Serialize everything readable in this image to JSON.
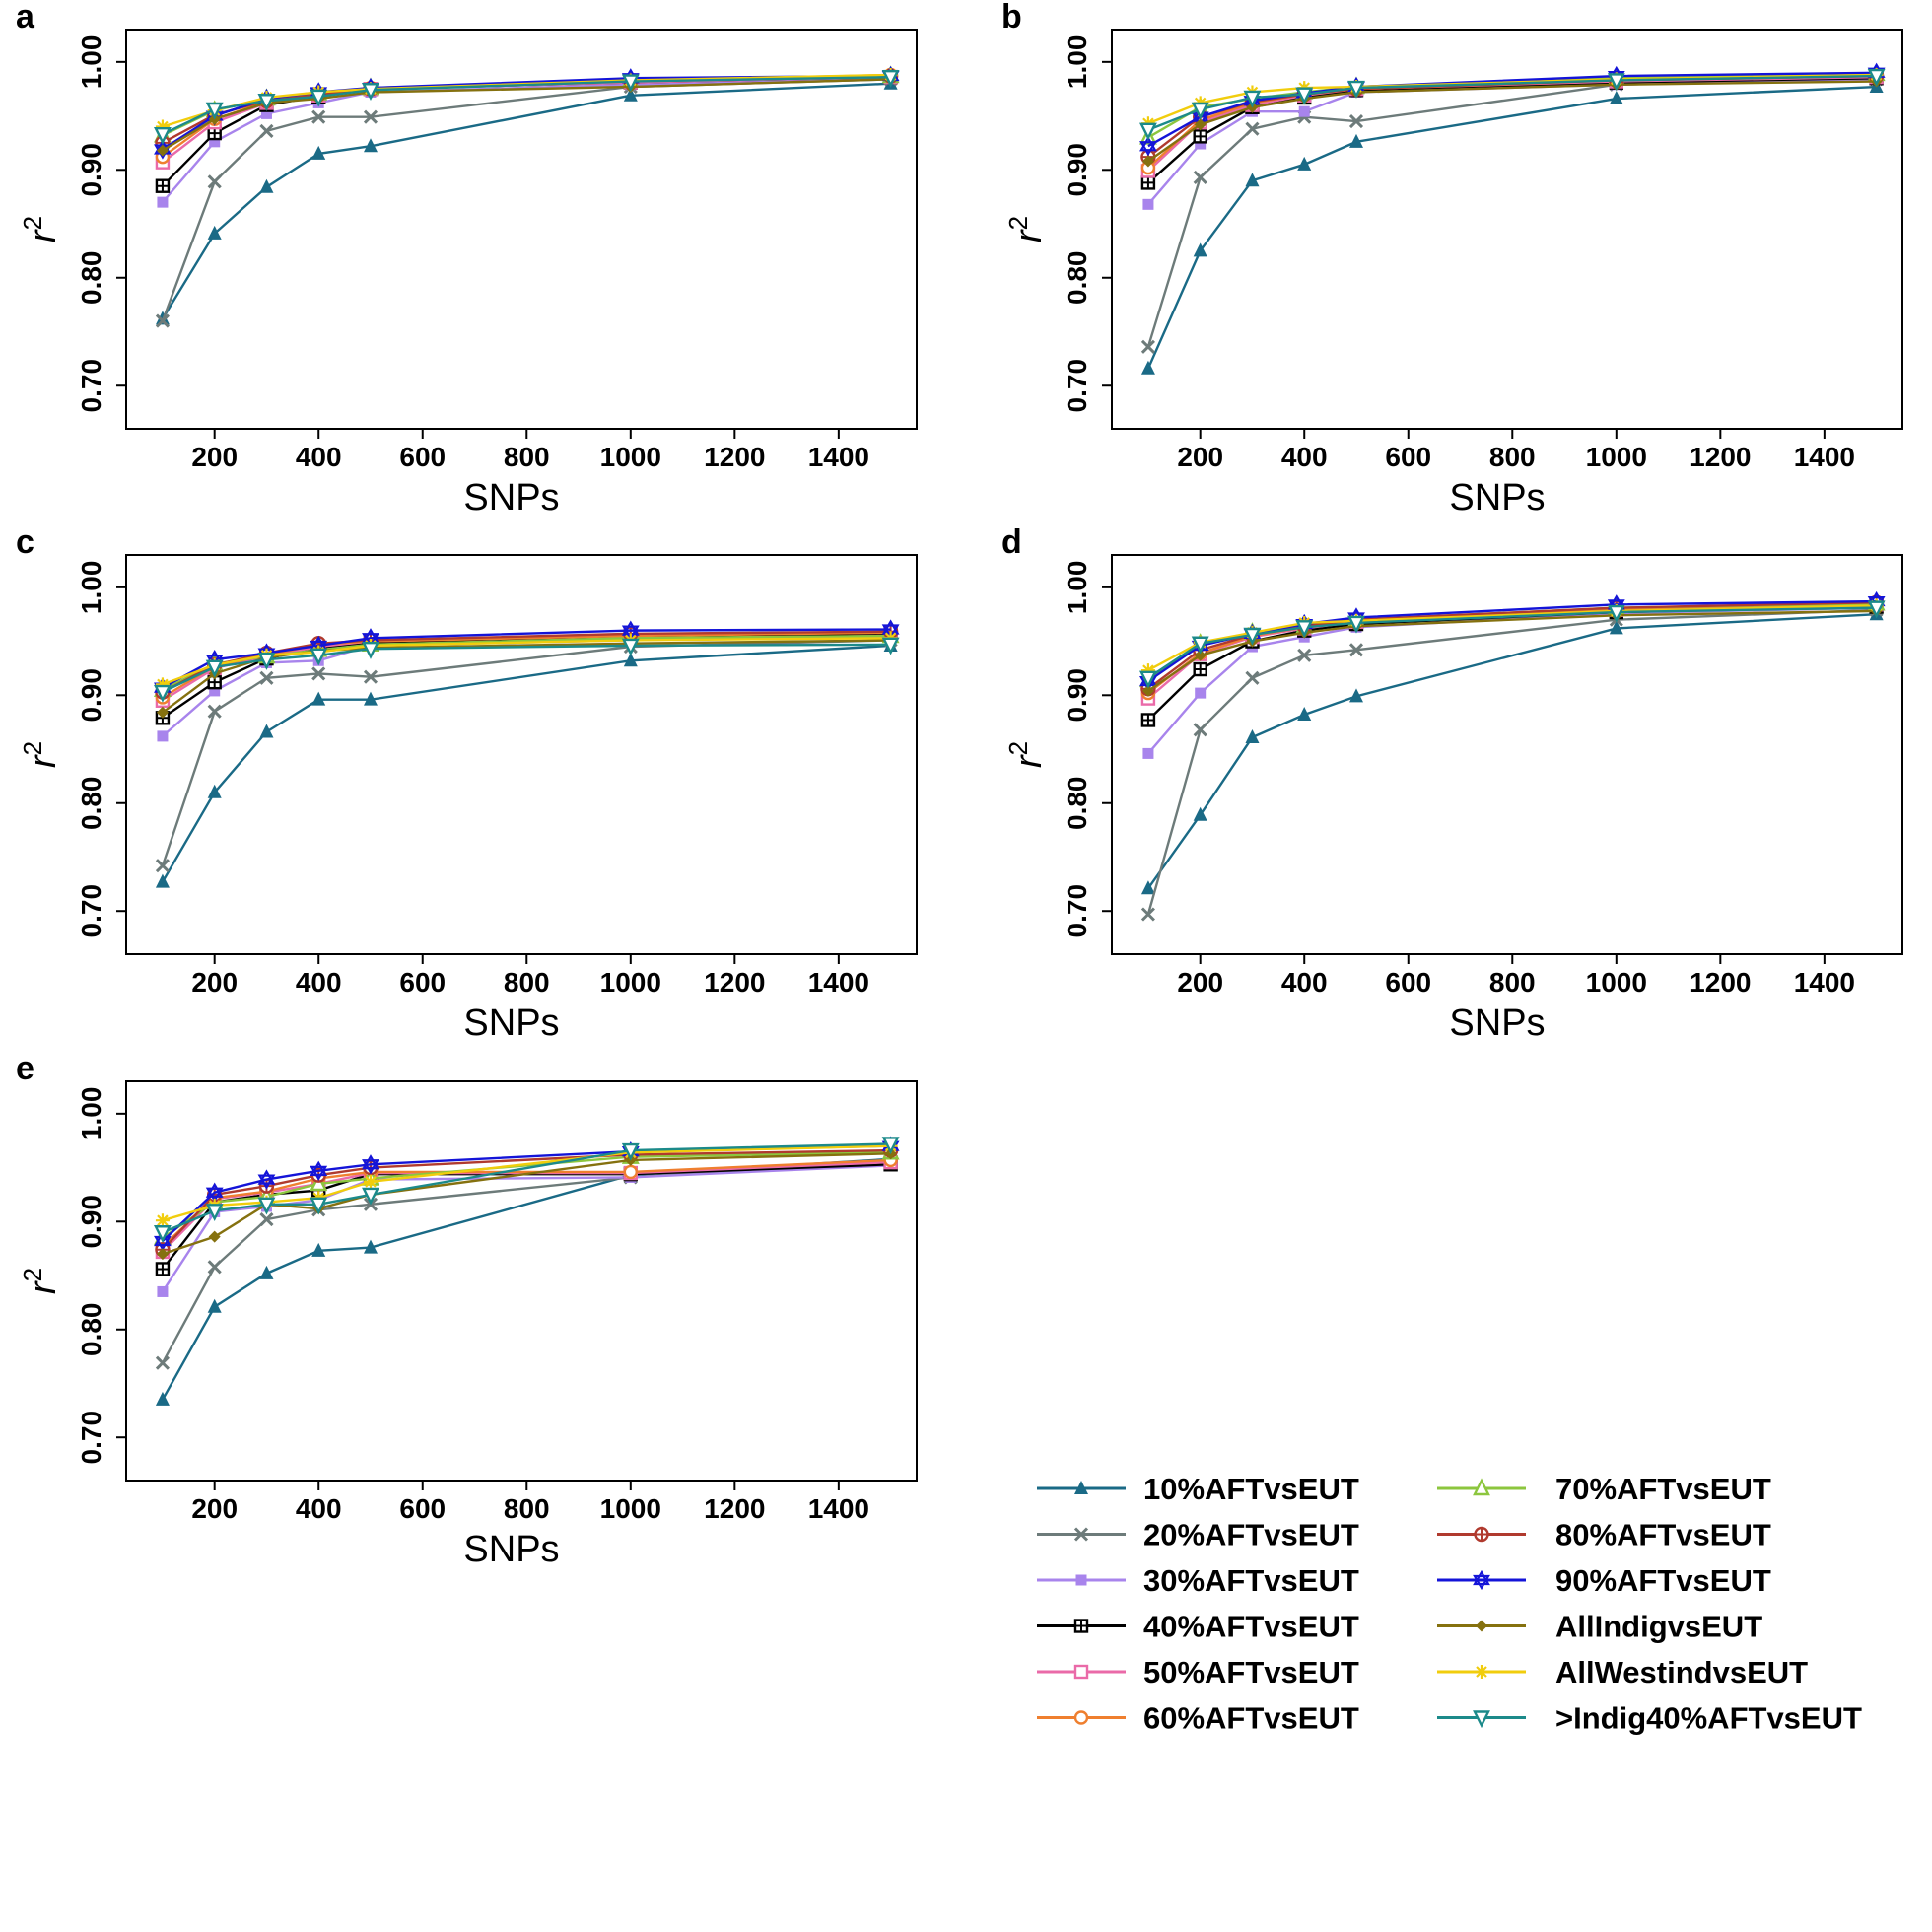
{
  "chart_data": {
    "type": "line",
    "x": [
      100,
      200,
      300,
      400,
      500,
      1000,
      1500
    ],
    "xlabel": "SNPs",
    "ylabel": "r",
    "ylabel_superscript": "2",
    "xlim": [
      30,
      1550
    ],
    "ylim": [
      0.66,
      1.03
    ],
    "xticks": [
      200,
      400,
      600,
      800,
      1000,
      1200,
      1400
    ],
    "xtick_labels": [
      "200",
      "400",
      "600",
      "800",
      "1000",
      "1200",
      "1400"
    ],
    "yticks": [
      0.7,
      0.8,
      0.9,
      1.0
    ],
    "ytick_labels": [
      "0.70",
      "0.80",
      "0.90",
      "1.00"
    ],
    "series_styles": [
      {
        "name": "10%AFTvsEUT",
        "color": "#1a6a86",
        "marker": "triangle-filled"
      },
      {
        "name": "20%AFTvsEUT",
        "color": "#6d7b7a",
        "marker": "x"
      },
      {
        "name": "30%AFTvsEUT",
        "color": "#a884ec",
        "marker": "square-filled"
      },
      {
        "name": "40%AFTvsEUT",
        "color": "#000000",
        "marker": "square-plus"
      },
      {
        "name": "50%AFTvsEUT",
        "color": "#ea6aa8",
        "marker": "square-open"
      },
      {
        "name": "60%AFTvsEUT",
        "color": "#ef7f2f",
        "marker": "circle-open"
      },
      {
        "name": "70%AFTvsEUT",
        "color": "#8cc63e",
        "marker": "triangle-open"
      },
      {
        "name": "80%AFTvsEUT",
        "color": "#b03a2e",
        "marker": "circle-plus"
      },
      {
        "name": "90%AFTvsEUT",
        "color": "#1414d8",
        "marker": "star-of-david"
      },
      {
        "name": "AllIndigvsEUT",
        "color": "#85710f",
        "marker": "diamond-filled"
      },
      {
        "name": "AllWestindvsEUT",
        "color": "#f1cd0d",
        "marker": "asterisk"
      },
      {
        "name": ">Indig40%AFTvsEUT",
        "color": "#1c8a8a",
        "marker": "triangle-down-open"
      }
    ],
    "panels": [
      {
        "letter": "a",
        "series": [
          {
            "name": "10%AFTvsEUT",
            "values": [
              0.762,
              0.841,
              0.884,
              0.915,
              0.922,
              0.969,
              0.98
            ]
          },
          {
            "name": "20%AFTvsEUT",
            "values": [
              0.76,
              0.889,
              0.936,
              0.949,
              0.949,
              0.977,
              0.984
            ]
          },
          {
            "name": "30%AFTvsEUT",
            "values": [
              0.87,
              0.926,
              0.952,
              0.962,
              0.972,
              0.979,
              0.985
            ]
          },
          {
            "name": "40%AFTvsEUT",
            "values": [
              0.885,
              0.934,
              0.96,
              0.968,
              0.975,
              0.981,
              0.986
            ]
          },
          {
            "name": "50%AFTvsEUT",
            "values": [
              0.907,
              0.944,
              0.962,
              0.969,
              0.975,
              0.981,
              0.986
            ]
          },
          {
            "name": "60%AFTvsEUT",
            "values": [
              0.912,
              0.947,
              0.963,
              0.969,
              0.976,
              0.982,
              0.988
            ]
          },
          {
            "name": "70%AFTvsEUT",
            "values": [
              0.932,
              0.955,
              0.966,
              0.971,
              0.976,
              0.983,
              0.987
            ]
          },
          {
            "name": "80%AFTvsEUT",
            "values": [
              0.925,
              0.951,
              0.964,
              0.97,
              0.975,
              0.983,
              0.987
            ]
          },
          {
            "name": "90%AFTvsEUT",
            "values": [
              0.919,
              0.95,
              0.966,
              0.972,
              0.976,
              0.985,
              0.987
            ]
          },
          {
            "name": "AllIndigvsEUT",
            "values": [
              0.918,
              0.947,
              0.962,
              0.966,
              0.972,
              0.977,
              0.984
            ]
          },
          {
            "name": "AllWestindvsEUT",
            "values": [
              0.94,
              0.955,
              0.967,
              0.972,
              0.975,
              0.983,
              0.988
            ]
          },
          {
            "name": ">Indig40%AFTvsEUT",
            "values": [
              0.933,
              0.956,
              0.964,
              0.968,
              0.974,
              0.982,
              0.986
            ]
          }
        ]
      },
      {
        "letter": "b",
        "series": [
          {
            "name": "10%AFTvsEUT",
            "values": [
              0.716,
              0.825,
              0.89,
              0.905,
              0.926,
              0.966,
              0.977
            ]
          },
          {
            "name": "20%AFTvsEUT",
            "values": [
              0.736,
              0.893,
              0.938,
              0.949,
              0.945,
              0.979,
              0.984
            ]
          },
          {
            "name": "30%AFTvsEUT",
            "values": [
              0.868,
              0.924,
              0.954,
              0.954,
              0.972,
              0.979,
              0.984
            ]
          },
          {
            "name": "40%AFTvsEUT",
            "values": [
              0.888,
              0.931,
              0.958,
              0.967,
              0.974,
              0.981,
              0.985
            ]
          },
          {
            "name": "50%AFTvsEUT",
            "values": [
              0.899,
              0.944,
              0.96,
              0.969,
              0.975,
              0.982,
              0.986
            ]
          },
          {
            "name": "60%AFTvsEUT",
            "values": [
              0.902,
              0.946,
              0.962,
              0.97,
              0.975,
              0.983,
              0.987
            ]
          },
          {
            "name": "70%AFTvsEUT",
            "values": [
              0.93,
              0.958,
              0.966,
              0.972,
              0.977,
              0.985,
              0.989
            ]
          },
          {
            "name": "80%AFTvsEUT",
            "values": [
              0.912,
              0.949,
              0.963,
              0.97,
              0.975,
              0.983,
              0.987
            ]
          },
          {
            "name": "90%AFTvsEUT",
            "values": [
              0.922,
              0.949,
              0.964,
              0.971,
              0.977,
              0.987,
              0.99
            ]
          },
          {
            "name": "AllIndigvsEUT",
            "values": [
              0.908,
              0.942,
              0.958,
              0.966,
              0.972,
              0.979,
              0.982
            ]
          },
          {
            "name": "AllWestindvsEUT",
            "values": [
              0.943,
              0.962,
              0.972,
              0.976,
              0.977,
              0.984,
              0.988
            ]
          },
          {
            "name": ">Indig40%AFTvsEUT",
            "values": [
              0.937,
              0.956,
              0.967,
              0.97,
              0.976,
              0.983,
              0.987
            ]
          }
        ]
      },
      {
        "letter": "c",
        "series": [
          {
            "name": "10%AFTvsEUT",
            "values": [
              0.727,
              0.81,
              0.866,
              0.896,
              0.896,
              0.932,
              0.946
            ]
          },
          {
            "name": "20%AFTvsEUT",
            "values": [
              0.742,
              0.885,
              0.916,
              0.92,
              0.917,
              0.945,
              0.951
            ]
          },
          {
            "name": "30%AFTvsEUT",
            "values": [
              0.862,
              0.904,
              0.93,
              0.932,
              0.946,
              0.951,
              0.955
            ]
          },
          {
            "name": "40%AFTvsEUT",
            "values": [
              0.879,
              0.912,
              0.934,
              0.944,
              0.949,
              0.955,
              0.957
            ]
          },
          {
            "name": "50%AFTvsEUT",
            "values": [
              0.895,
              0.925,
              0.936,
              0.945,
              0.95,
              0.956,
              0.958
            ]
          },
          {
            "name": "60%AFTvsEUT",
            "values": [
              0.898,
              0.927,
              0.937,
              0.947,
              0.95,
              0.955,
              0.958
            ]
          },
          {
            "name": "70%AFTvsEUT",
            "values": [
              0.905,
              0.929,
              0.936,
              0.942,
              0.947,
              0.953,
              0.955
            ]
          },
          {
            "name": "80%AFTvsEUT",
            "values": [
              0.903,
              0.928,
              0.939,
              0.948,
              0.951,
              0.957,
              0.959
            ]
          },
          {
            "name": "90%AFTvsEUT",
            "values": [
              0.907,
              0.933,
              0.939,
              0.946,
              0.953,
              0.96,
              0.961
            ]
          },
          {
            "name": "AllIndigvsEUT",
            "values": [
              0.884,
              0.92,
              0.935,
              0.941,
              0.944,
              0.948,
              0.951
            ]
          },
          {
            "name": "AllWestindvsEUT",
            "values": [
              0.91,
              0.928,
              0.937,
              0.94,
              0.946,
              0.951,
              0.953
            ]
          },
          {
            "name": ">Indig40%AFTvsEUT",
            "values": [
              0.903,
              0.926,
              0.933,
              0.937,
              0.943,
              0.946,
              0.947
            ]
          }
        ]
      },
      {
        "letter": "d",
        "series": [
          {
            "name": "10%AFTvsEUT",
            "values": [
              0.721,
              0.789,
              0.861,
              0.882,
              0.899,
              0.962,
              0.975
            ]
          },
          {
            "name": "20%AFTvsEUT",
            "values": [
              0.697,
              0.868,
              0.916,
              0.937,
              0.942,
              0.97,
              0.979
            ]
          },
          {
            "name": "30%AFTvsEUT",
            "values": [
              0.846,
              0.902,
              0.945,
              0.954,
              0.963,
              0.976,
              0.981
            ]
          },
          {
            "name": "40%AFTvsEUT",
            "values": [
              0.877,
              0.924,
              0.95,
              0.96,
              0.966,
              0.977,
              0.982
            ]
          },
          {
            "name": "50%AFTvsEUT",
            "values": [
              0.897,
              0.938,
              0.954,
              0.962,
              0.968,
              0.979,
              0.984
            ]
          },
          {
            "name": "60%AFTvsEUT",
            "values": [
              0.902,
              0.939,
              0.955,
              0.963,
              0.968,
              0.979,
              0.984
            ]
          },
          {
            "name": "70%AFTvsEUT",
            "values": [
              0.914,
              0.948,
              0.958,
              0.964,
              0.97,
              0.981,
              0.985
            ]
          },
          {
            "name": "80%AFTvsEUT",
            "values": [
              0.906,
              0.942,
              0.956,
              0.964,
              0.97,
              0.981,
              0.986
            ]
          },
          {
            "name": "90%AFTvsEUT",
            "values": [
              0.913,
              0.946,
              0.957,
              0.966,
              0.972,
              0.984,
              0.987
            ]
          },
          {
            "name": "AllIndigvsEUT",
            "values": [
              0.904,
              0.937,
              0.95,
              0.958,
              0.964,
              0.974,
              0.978
            ]
          },
          {
            "name": "AllWestindvsEUT",
            "values": [
              0.923,
              0.949,
              0.958,
              0.967,
              0.969,
              0.978,
              0.983
            ]
          },
          {
            "name": ">Indig40%AFTvsEUT",
            "values": [
              0.916,
              0.948,
              0.956,
              0.963,
              0.967,
              0.977,
              0.981
            ]
          }
        ]
      },
      {
        "letter": "e",
        "series": [
          {
            "name": "10%AFTvsEUT",
            "values": [
              0.735,
              0.821,
              0.852,
              0.873,
              0.876,
              0.943,
              0.958
            ]
          },
          {
            "name": "20%AFTvsEUT",
            "values": [
              0.769,
              0.858,
              0.902,
              0.911,
              0.916,
              0.941,
              0.956
            ]
          },
          {
            "name": "30%AFTvsEUT",
            "values": [
              0.835,
              0.909,
              0.914,
              0.92,
              0.939,
              0.941,
              0.952
            ]
          },
          {
            "name": "40%AFTvsEUT",
            "values": [
              0.856,
              0.918,
              0.925,
              0.929,
              0.944,
              0.944,
              0.953
            ]
          },
          {
            "name": "50%AFTvsEUT",
            "values": [
              0.872,
              0.921,
              0.927,
              0.935,
              0.945,
              0.945,
              0.955
            ]
          },
          {
            "name": "60%AFTvsEUT",
            "values": [
              0.877,
              0.922,
              0.928,
              0.94,
              0.946,
              0.946,
              0.957
            ]
          },
          {
            "name": "70%AFTvsEUT",
            "values": [
              0.885,
              0.918,
              0.923,
              0.935,
              0.94,
              0.96,
              0.964
            ]
          },
          {
            "name": "80%AFTvsEUT",
            "values": [
              0.874,
              0.925,
              0.933,
              0.943,
              0.95,
              0.962,
              0.966
            ]
          },
          {
            "name": "90%AFTvsEUT",
            "values": [
              0.882,
              0.927,
              0.939,
              0.947,
              0.953,
              0.965,
              0.97
            ]
          },
          {
            "name": "AllIndigvsEUT",
            "values": [
              0.87,
              0.886,
              0.916,
              0.912,
              0.925,
              0.957,
              0.963
            ]
          },
          {
            "name": "AllWestindvsEUT",
            "values": [
              0.901,
              0.915,
              0.918,
              0.922,
              0.937,
              0.964,
              0.97
            ]
          },
          {
            "name": ">Indig40%AFTvsEUT",
            "values": [
              0.89,
              0.91,
              0.916,
              0.916,
              0.925,
              0.966,
              0.972
            ]
          }
        ]
      }
    ]
  }
}
